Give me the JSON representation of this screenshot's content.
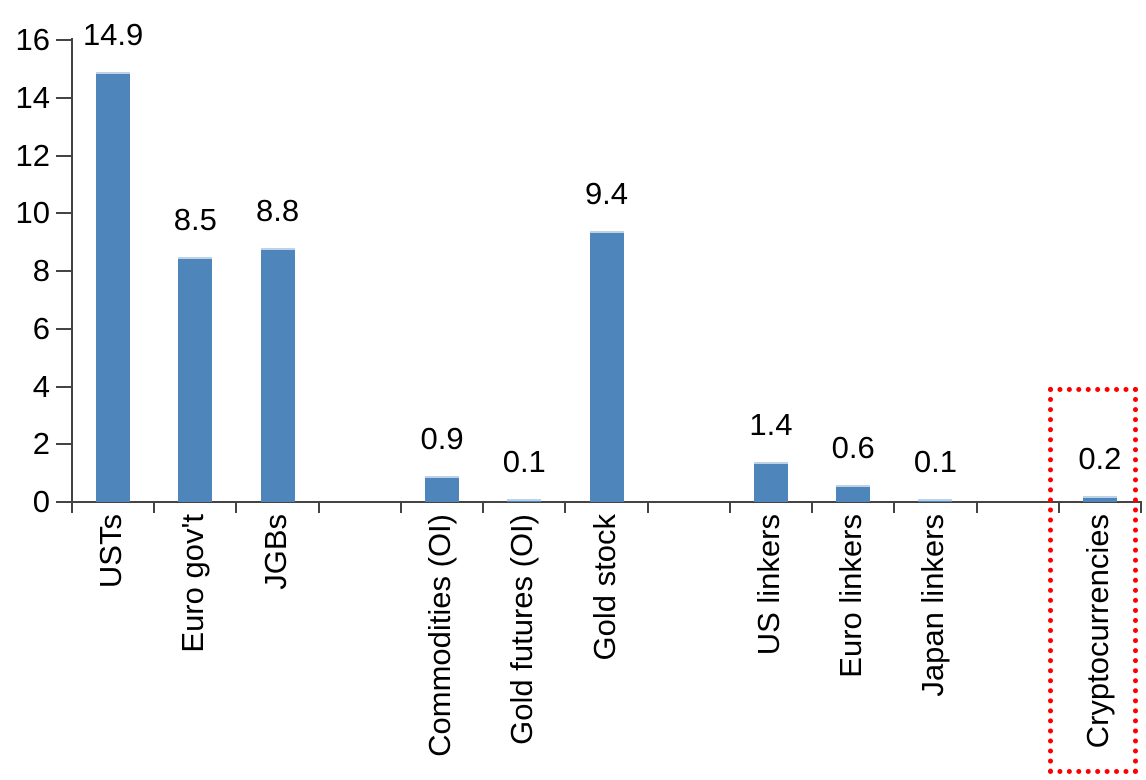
{
  "chart_data": {
    "type": "bar",
    "title": "",
    "bars": [
      {
        "category": "USTs",
        "value": 14.9,
        "value_label": "14.9",
        "slot": 0
      },
      {
        "category": "Euro gov't",
        "value": 8.5,
        "value_label": "8.5",
        "slot": 1
      },
      {
        "category": "JGBs",
        "value": 8.8,
        "value_label": "8.8",
        "slot": 2
      },
      {
        "category": "Commodities (OI)",
        "value": 0.9,
        "value_label": "0.9",
        "slot": 4
      },
      {
        "category": "Gold futures (OI)",
        "value": 0.1,
        "value_label": "0.1",
        "slot": 5
      },
      {
        "category": "Gold stock",
        "value": 9.4,
        "value_label": "9.4",
        "slot": 6
      },
      {
        "category": "US linkers",
        "value": 1.4,
        "value_label": "1.4",
        "slot": 8
      },
      {
        "category": "Euro linkers",
        "value": 0.6,
        "value_label": "0.6",
        "slot": 9
      },
      {
        "category": "Japan linkers",
        "value": 0.1,
        "value_label": "0.1",
        "slot": 10
      },
      {
        "category": "Cryptocurrencies",
        "value": 0.2,
        "value_label": "0.2",
        "slot": 12,
        "highlighted": true
      }
    ],
    "total_slots": 13,
    "y_axis": {
      "min": 0,
      "max": 16,
      "tick_step": 2,
      "tick_labels": [
        "0",
        "2",
        "4",
        "6",
        "8",
        "10",
        "12",
        "14",
        "16"
      ]
    },
    "x_axis": {
      "label_rotation_deg": -90,
      "ticks_at_slot_boundaries": true
    },
    "grid": false,
    "legend": false,
    "colors": {
      "bar_fill": "#4E86BC",
      "bar_top_edge": "#BDD2E6",
      "axis": "#444444",
      "text": "#000000",
      "highlight_box": "#FF0000"
    },
    "highlight": {
      "target_category": "Cryptocurrencies",
      "style": "red-dotted-box"
    }
  }
}
